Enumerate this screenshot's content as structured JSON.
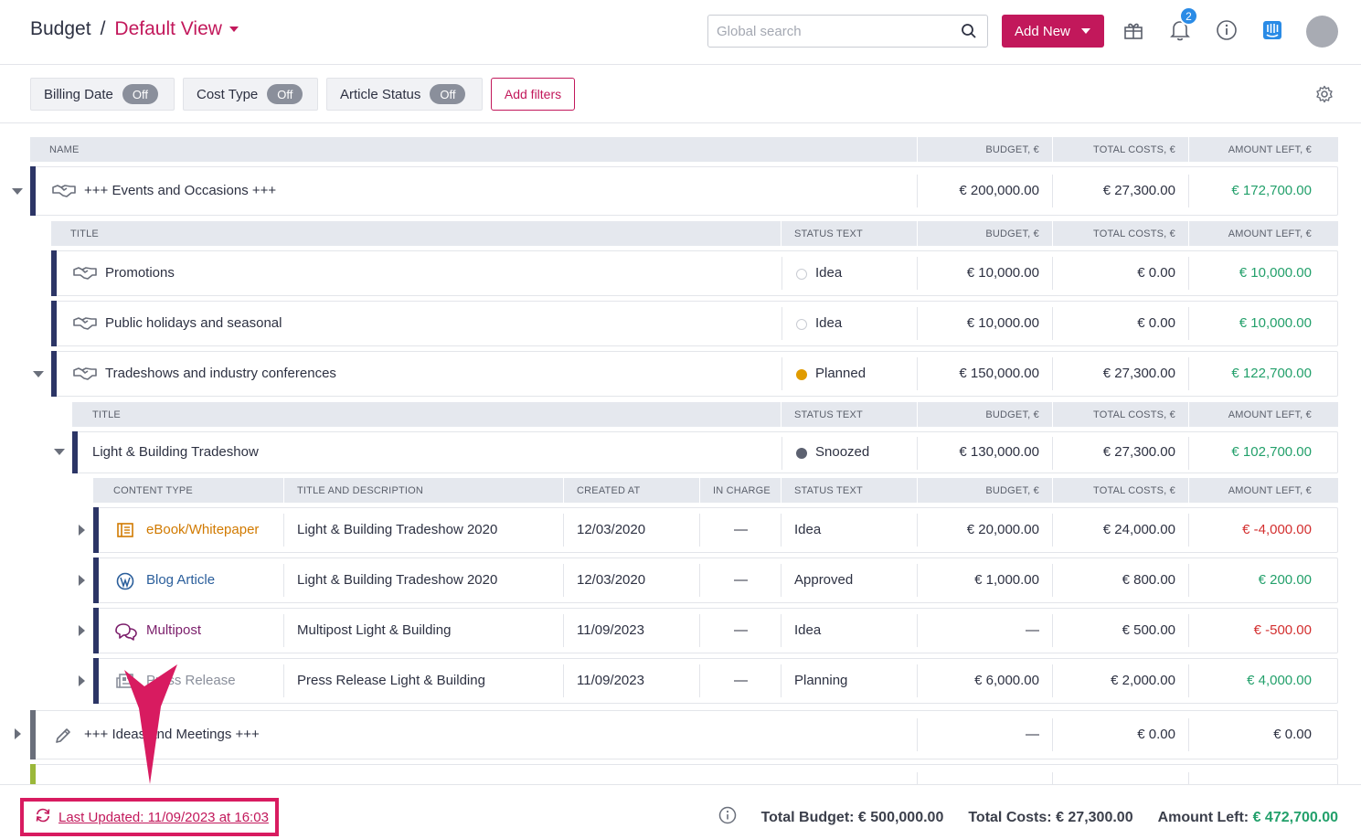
{
  "header": {
    "breadcrumb_root": "Budget",
    "breadcrumb_sep": "/",
    "view_name": "Default View",
    "search_placeholder": "Global search",
    "add_new_label": "Add New",
    "notification_count": "2",
    "icons": [
      "search-icon",
      "gift-icon",
      "bell-icon",
      "info-icon",
      "intercom-icon"
    ],
    "accent_color": "#c2185b"
  },
  "filters": {
    "chips": [
      {
        "label": "Billing Date",
        "state": "Off"
      },
      {
        "label": "Cost Type",
        "state": "Off"
      },
      {
        "label": "Article Status",
        "state": "Off"
      }
    ],
    "add_filters_label": "Add filters"
  },
  "table": {
    "top_header": {
      "name": "NAME",
      "budget": "BUDGET, €",
      "total_costs": "TOTAL COSTS, €",
      "amount_left": "AMOUNT LEFT, €"
    },
    "sub_header": {
      "title": "TITLE",
      "status": "STATUS TEXT",
      "budget": "BUDGET, €",
      "total_costs": "TOTAL COSTS, €",
      "amount_left": "AMOUNT LEFT, €"
    },
    "content_header": {
      "type": "CONTENT TYPE",
      "title": "TITLE AND DESCRIPTION",
      "created": "CREATED AT",
      "in_charge": "IN CHARGE",
      "status": "STATUS TEXT",
      "budget": "BUDGET, €",
      "total_costs": "TOTAL COSTS, €",
      "amount_left": "AMOUNT LEFT, €"
    },
    "events_group": {
      "name": "+++ Events and Occasions +++",
      "budget": "€ 200,000.00",
      "total_costs": "€ 27,300.00",
      "amount_left": "€ 172,700.00"
    },
    "campaigns": [
      {
        "title": "Promotions",
        "status": "Idea",
        "budget": "€ 10,000.00",
        "total_costs": "€ 0.00",
        "amount_left": "€ 10,000.00"
      },
      {
        "title": "Public holidays and seasonal",
        "status": "Idea",
        "budget": "€ 10,000.00",
        "total_costs": "€ 0.00",
        "amount_left": "€ 10,000.00"
      },
      {
        "title": "Tradeshows and industry conferences",
        "status": "Planned",
        "budget": "€ 150,000.00",
        "total_costs": "€ 27,300.00",
        "amount_left": "€ 122,700.00"
      }
    ],
    "sub_campaign": {
      "title": "Light & Building Tradeshow",
      "status": "Snoozed",
      "budget": "€ 130,000.00",
      "total_costs": "€ 27,300.00",
      "amount_left": "€ 102,700.00"
    },
    "content_rows": [
      {
        "type": "eBook/Whitepaper",
        "title": "Light & Building Tradeshow 2020",
        "created": "12/03/2020",
        "in_charge": "—",
        "status": "Idea",
        "budget": "€ 20,000.00",
        "total_costs": "€ 24,000.00",
        "amount_left": "€ -4,000.00",
        "type_color": "#d17a00",
        "left_color": "red"
      },
      {
        "type": "Blog Article",
        "title": "Light & Building Tradeshow 2020",
        "created": "12/03/2020",
        "in_charge": "—",
        "status": "Approved",
        "budget": "€ 1,000.00",
        "total_costs": "€ 800.00",
        "amount_left": "€ 200.00",
        "type_color": "#2a5e9b",
        "left_color": "green"
      },
      {
        "type": "Multipost",
        "title": "Multipost Light & Building",
        "created": "11/09/2023",
        "in_charge": "—",
        "status": "Idea",
        "budget": "—",
        "total_costs": "€ 500.00",
        "amount_left": "€ -500.00",
        "type_color": "#7b1e6b",
        "left_color": "red"
      },
      {
        "type": "Press Release",
        "title": "Press Release Light & Building",
        "created": "11/09/2023",
        "in_charge": "—",
        "status": "Planning",
        "budget": "€ 6,000.00",
        "total_costs": "€ 2,000.00",
        "amount_left": "€ 4,000.00",
        "type_color": "#8a8f9b",
        "left_color": "green"
      }
    ],
    "ideas_group": {
      "name": "+++ Ideas and Meetings +++",
      "budget": "—",
      "total_costs": "€ 0.00",
      "amount_left": "€ 0.00"
    }
  },
  "footer": {
    "last_updated": "Last Updated: 11/09/2023 at 16:03",
    "total_budget_label": "Total Budget:",
    "total_budget": "€ 500,000.00",
    "total_costs_label": "Total Costs:",
    "total_costs": "€ 27,300.00",
    "amount_left_label": "Amount Left:",
    "amount_left": "€ 472,700.00"
  }
}
